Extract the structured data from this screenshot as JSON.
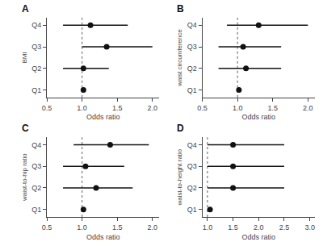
{
  "chart_data": [
    {
      "type": "scatter",
      "orientation": "horizontal",
      "title": "A",
      "xlabel": "Odds ratio",
      "ylabel": "BMI",
      "categories": [
        "Q1",
        "Q2",
        "Q3",
        "Q4"
      ],
      "values": [
        1.02,
        1.02,
        1.35,
        1.12
      ],
      "lo": [
        1.02,
        0.73,
        1.0,
        0.73
      ],
      "hi": [
        1.02,
        1.38,
        2.0,
        1.65
      ],
      "color": "#111111",
      "marker": "circle",
      "xlim": [
        0.5,
        2.1
      ],
      "xticks": [
        0.5,
        {
          "value": 1.0,
          "label": "1.0"
        },
        1.5,
        {
          "value": 2.0,
          "label": "2.0"
        }
      ],
      "grid": false,
      "reference_line": {
        "value": 1.0,
        "color": "#777777",
        "line_style": "dotted"
      }
    },
    {
      "type": "scatter",
      "orientation": "horizontal",
      "title": "B",
      "xlabel": "Odds ratio",
      "ylabel": "waist circumference",
      "categories": [
        "Q1",
        "Q2",
        "Q3",
        "Q4"
      ],
      "values": [
        1.02,
        1.12,
        1.08,
        1.3
      ],
      "lo": [
        1.02,
        0.73,
        0.73,
        0.85
      ],
      "hi": [
        1.02,
        1.62,
        1.62,
        2.0
      ],
      "color": "#111111",
      "marker": "circle",
      "xlim": [
        0.5,
        2.1
      ],
      "xticks": [
        0.5,
        {
          "value": 1.0,
          "label": "1.0"
        },
        1.5,
        {
          "value": 2.0,
          "label": "2.0"
        }
      ],
      "grid": false,
      "reference_line": {
        "value": 1.0,
        "color": "#777777",
        "line_style": "dotted"
      }
    },
    {
      "type": "scatter",
      "orientation": "horizontal",
      "title": "C",
      "xlabel": "Odds ratio",
      "ylabel": "waist-to-hip ratio",
      "categories": [
        "Q1",
        "Q2",
        "Q3",
        "Q4"
      ],
      "values": [
        1.02,
        1.2,
        1.05,
        1.4
      ],
      "lo": [
        1.02,
        0.73,
        0.73,
        0.88
      ],
      "hi": [
        1.02,
        1.72,
        1.6,
        1.95
      ],
      "color": "#111111",
      "marker": "circle",
      "xlim": [
        0.5,
        2.1
      ],
      "xticks": [
        0.5,
        {
          "value": 1.0,
          "label": "1.0"
        },
        1.5,
        {
          "value": 2.0,
          "label": "2.0"
        }
      ],
      "grid": false,
      "reference_line": {
        "value": 1.0,
        "color": "#777777",
        "line_style": "dotted"
      }
    },
    {
      "type": "scatter",
      "orientation": "horizontal",
      "title": "D",
      "xlabel": "Odds ratio",
      "ylabel": "waist-to-height ratio",
      "categories": [
        "Q1",
        "Q2",
        "Q3",
        "Q4"
      ],
      "values": [
        1.05,
        1.5,
        1.5,
        1.5
      ],
      "lo": [
        1.05,
        1.0,
        1.0,
        1.0
      ],
      "hi": [
        1.05,
        2.5,
        2.5,
        2.5
      ],
      "color": "#111111",
      "marker": "circle",
      "xlim": [
        0.9,
        3.1
      ],
      "xticks": [
        {
          "value": 1.0,
          "label": "1.0"
        },
        1.5,
        {
          "value": 2.0,
          "label": "2.0"
        },
        2.5,
        {
          "value": 3.0,
          "label": "3.0"
        }
      ],
      "grid": false,
      "reference_line": {
        "value": 1.0,
        "color": "#777777",
        "line_style": "dotted"
      }
    }
  ]
}
